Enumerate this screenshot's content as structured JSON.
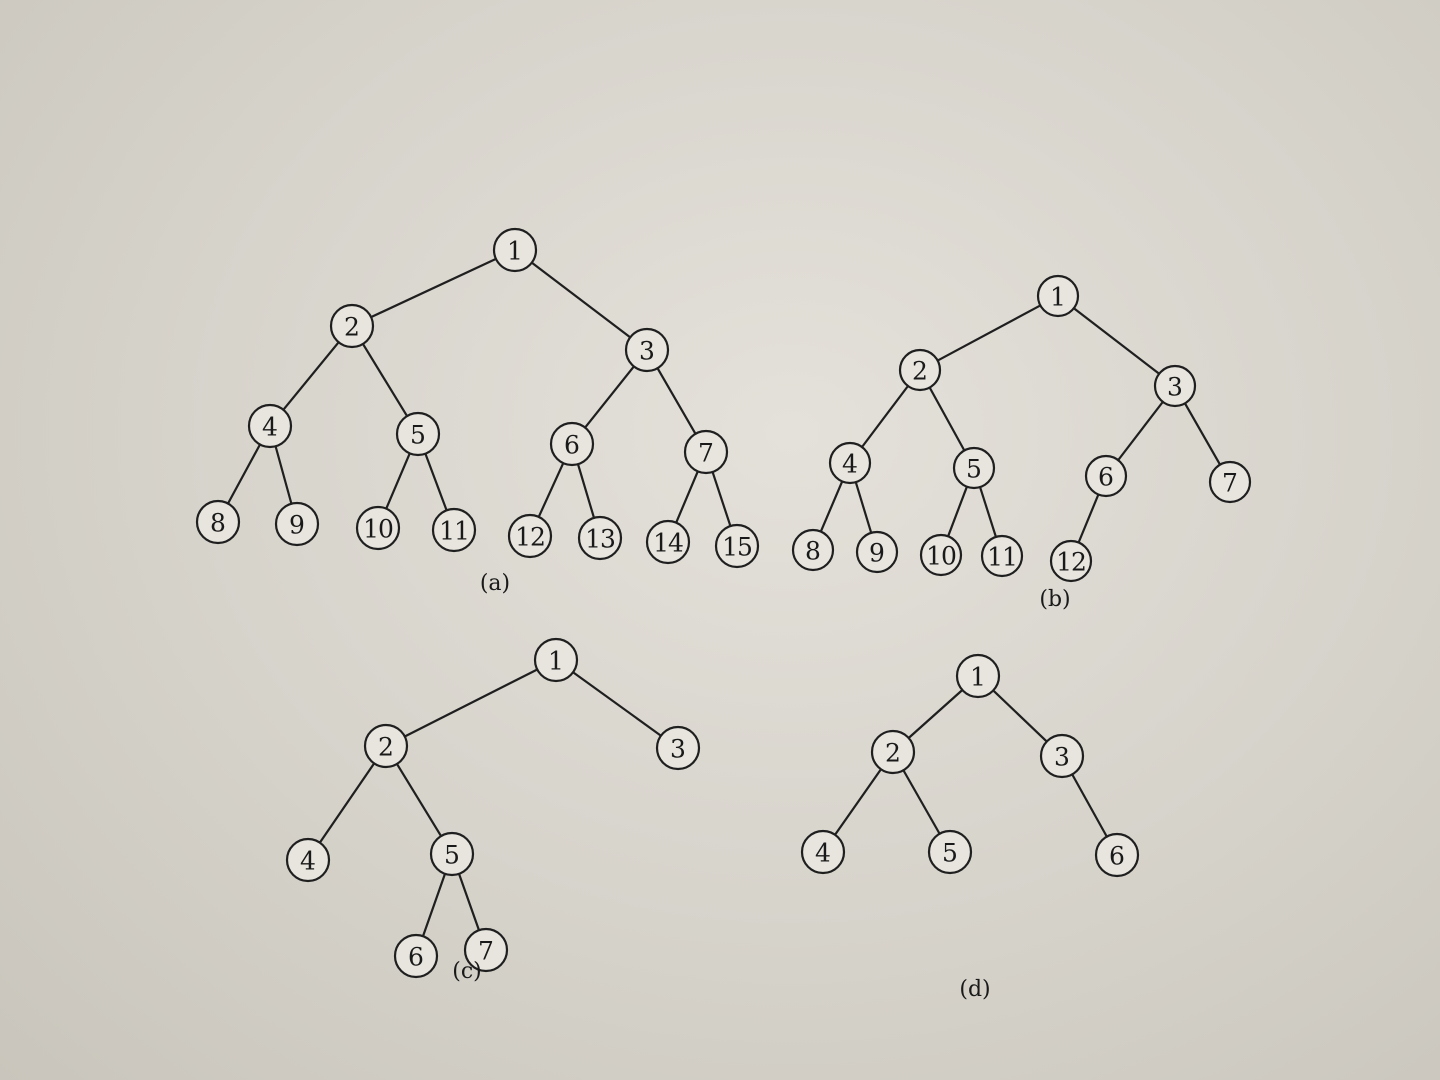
{
  "trees": [
    {
      "id": "a",
      "caption": "(a)",
      "nodes": [
        {
          "label": "1"
        },
        {
          "label": "2"
        },
        {
          "label": "3"
        },
        {
          "label": "4"
        },
        {
          "label": "5"
        },
        {
          "label": "6"
        },
        {
          "label": "7"
        },
        {
          "label": "8"
        },
        {
          "label": "9"
        },
        {
          "label": "10"
        },
        {
          "label": "11"
        },
        {
          "label": "12"
        },
        {
          "label": "13"
        },
        {
          "label": "14"
        },
        {
          "label": "15"
        }
      ],
      "edges": [
        [
          "1",
          "2"
        ],
        [
          "1",
          "3"
        ],
        [
          "2",
          "4"
        ],
        [
          "2",
          "5"
        ],
        [
          "3",
          "6"
        ],
        [
          "3",
          "7"
        ],
        [
          "4",
          "8"
        ],
        [
          "4",
          "9"
        ],
        [
          "5",
          "10"
        ],
        [
          "5",
          "11"
        ],
        [
          "6",
          "12"
        ],
        [
          "6",
          "13"
        ],
        [
          "7",
          "14"
        ],
        [
          "7",
          "15"
        ]
      ]
    },
    {
      "id": "b",
      "caption": "(b)",
      "nodes": [
        {
          "label": "1"
        },
        {
          "label": "2"
        },
        {
          "label": "3"
        },
        {
          "label": "4"
        },
        {
          "label": "5"
        },
        {
          "label": "6"
        },
        {
          "label": "7"
        },
        {
          "label": "8"
        },
        {
          "label": "9"
        },
        {
          "label": "10"
        },
        {
          "label": "11"
        },
        {
          "label": "12"
        }
      ],
      "edges": [
        [
          "1",
          "2"
        ],
        [
          "1",
          "3"
        ],
        [
          "2",
          "4"
        ],
        [
          "2",
          "5"
        ],
        [
          "3",
          "6"
        ],
        [
          "3",
          "7"
        ],
        [
          "4",
          "8"
        ],
        [
          "4",
          "9"
        ],
        [
          "5",
          "10"
        ],
        [
          "5",
          "11"
        ],
        [
          "6",
          "12"
        ]
      ]
    },
    {
      "id": "c",
      "caption": "(c)",
      "nodes": [
        {
          "label": "1"
        },
        {
          "label": "2"
        },
        {
          "label": "3"
        },
        {
          "label": "4"
        },
        {
          "label": "5"
        },
        {
          "label": "6"
        },
        {
          "label": "7"
        }
      ],
      "edges": [
        [
          "1",
          "2"
        ],
        [
          "1",
          "3"
        ],
        [
          "2",
          "4"
        ],
        [
          "2",
          "5"
        ],
        [
          "5",
          "6"
        ],
        [
          "5",
          "7"
        ]
      ]
    },
    {
      "id": "d",
      "caption": "(d)",
      "nodes": [
        {
          "label": "1"
        },
        {
          "label": "2"
        },
        {
          "label": "3"
        },
        {
          "label": "4"
        },
        {
          "label": "5"
        },
        {
          "label": "6"
        }
      ],
      "edges": [
        [
          "1",
          "2"
        ],
        [
          "1",
          "3"
        ],
        [
          "2",
          "4"
        ],
        [
          "2",
          "5"
        ],
        [
          "3",
          "6"
        ]
      ]
    }
  ]
}
